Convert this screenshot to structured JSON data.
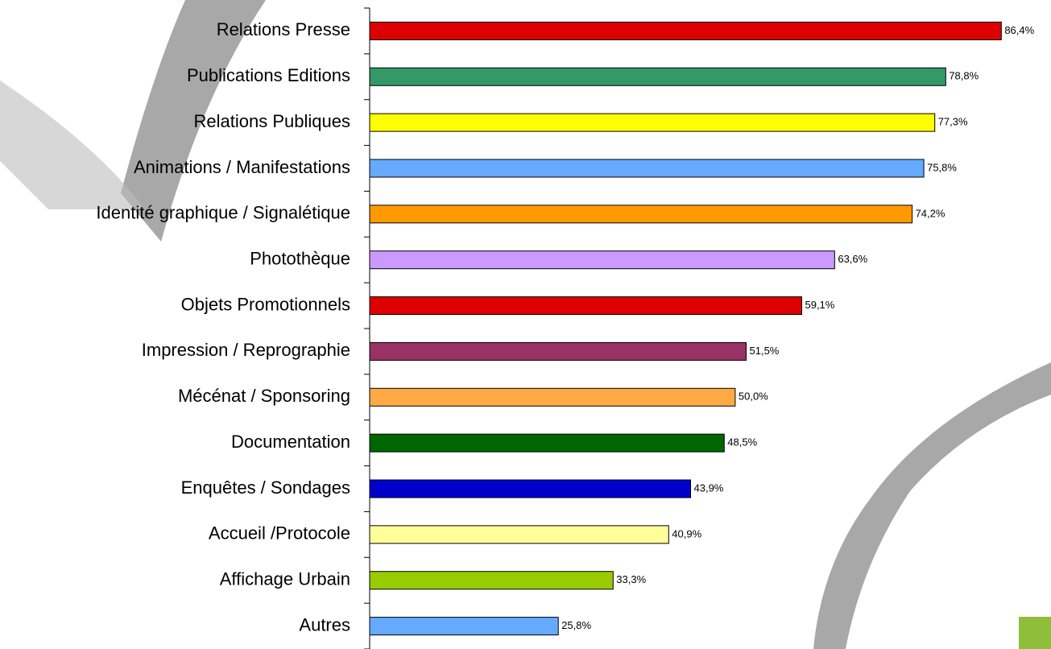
{
  "chart_data": {
    "type": "bar",
    "orientation": "horizontal",
    "categories": [
      "Relations Presse",
      "Publications Editions",
      "Relations Publiques",
      "Animations / Manifestations",
      "Identité graphique / Signalétique",
      "Photothèque",
      "Objets Promotionnels",
      "Impression / Reprographie",
      "Mécénat / Sponsoring",
      "Documentation",
      "Enquêtes / Sondages",
      "Accueil /Protocole",
      "Affichage Urbain",
      "Autres"
    ],
    "values": [
      86.4,
      78.8,
      77.3,
      75.8,
      74.2,
      63.6,
      59.1,
      51.5,
      50.0,
      48.5,
      43.9,
      40.9,
      33.3,
      25.8
    ],
    "value_labels": [
      "86,4%",
      "78,8%",
      "77,3%",
      "75,8%",
      "74,2%",
      "63,6%",
      "59,1%",
      "51,5%",
      "50,0%",
      "48,5%",
      "43,9%",
      "40,9%",
      "33,3%",
      "25,8%"
    ],
    "colors": [
      "#dd0000",
      "#339966",
      "#ffff00",
      "#66aaff",
      "#ff9900",
      "#cc99ff",
      "#dd0000",
      "#993366",
      "#ffaa44",
      "#006600",
      "#0000cc",
      "#ffff99",
      "#99cc00",
      "#66aaff"
    ],
    "xlim": [
      0,
      90
    ]
  }
}
